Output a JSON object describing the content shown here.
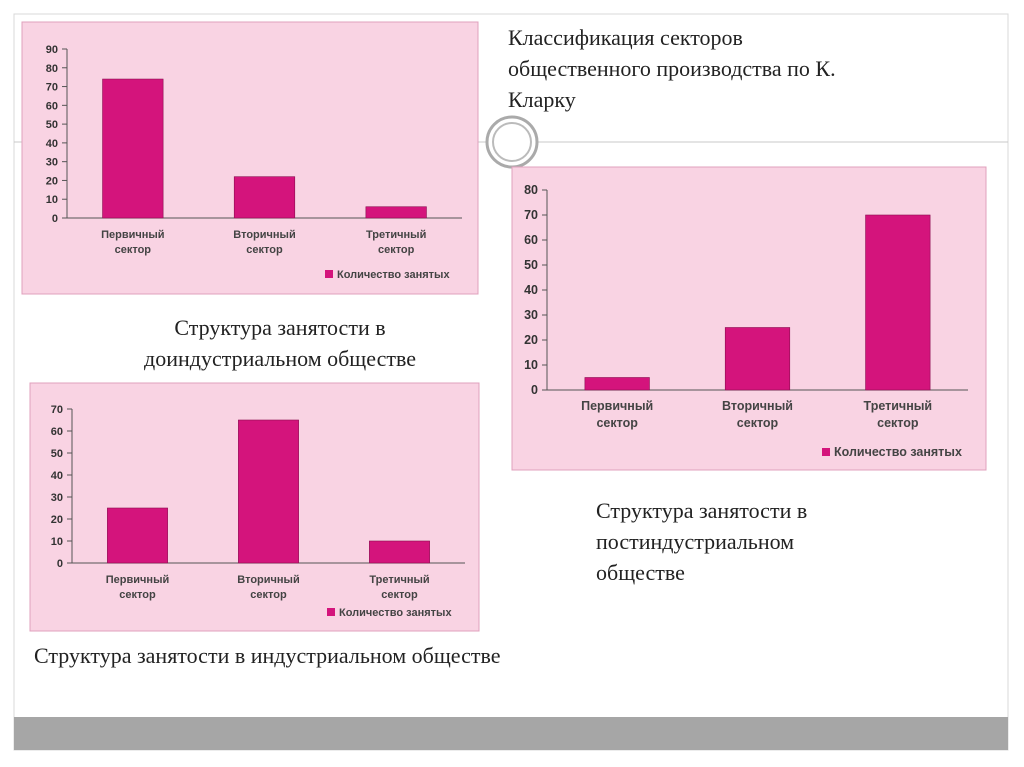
{
  "slide_title": "Классификация секторов общественного производства по К. Кларку",
  "chart_data": [
    {
      "type": "bar",
      "caption": "Структура занятости в доиндустриальном обществе",
      "categories": [
        "Первичный сектор",
        "Вторичный сектор",
        "Третичный сектор"
      ],
      "series": [
        {
          "name": "Количество занятых",
          "color": "#d4147c",
          "values": [
            74,
            22,
            6
          ]
        }
      ],
      "ylim": [
        0,
        90
      ],
      "yticks": [
        0,
        10,
        20,
        30,
        40,
        50,
        60,
        70,
        80,
        90
      ]
    },
    {
      "type": "bar",
      "caption": "Структура занятости в индустриальном обществе",
      "categories": [
        "Первичный сектор",
        "Вторичный сектор",
        "Третичный сектор"
      ],
      "series": [
        {
          "name": "Количество занятых",
          "color": "#d4147c",
          "values": [
            25,
            65,
            10
          ]
        }
      ],
      "ylim": [
        0,
        70
      ],
      "yticks": [
        0,
        10,
        20,
        30,
        40,
        50,
        60,
        70
      ]
    },
    {
      "type": "bar",
      "caption": "Структура занятости в постиндустриальном обществе",
      "categories": [
        "Первичный сектор",
        "Вторичный сектор",
        "Третичный сектор"
      ],
      "series": [
        {
          "name": "Количество занятых",
          "color": "#d4147c",
          "values": [
            5,
            25,
            70
          ]
        }
      ],
      "ylim": [
        0,
        80
      ],
      "yticks": [
        0,
        10,
        20,
        30,
        40,
        50,
        60,
        70,
        80
      ]
    }
  ]
}
